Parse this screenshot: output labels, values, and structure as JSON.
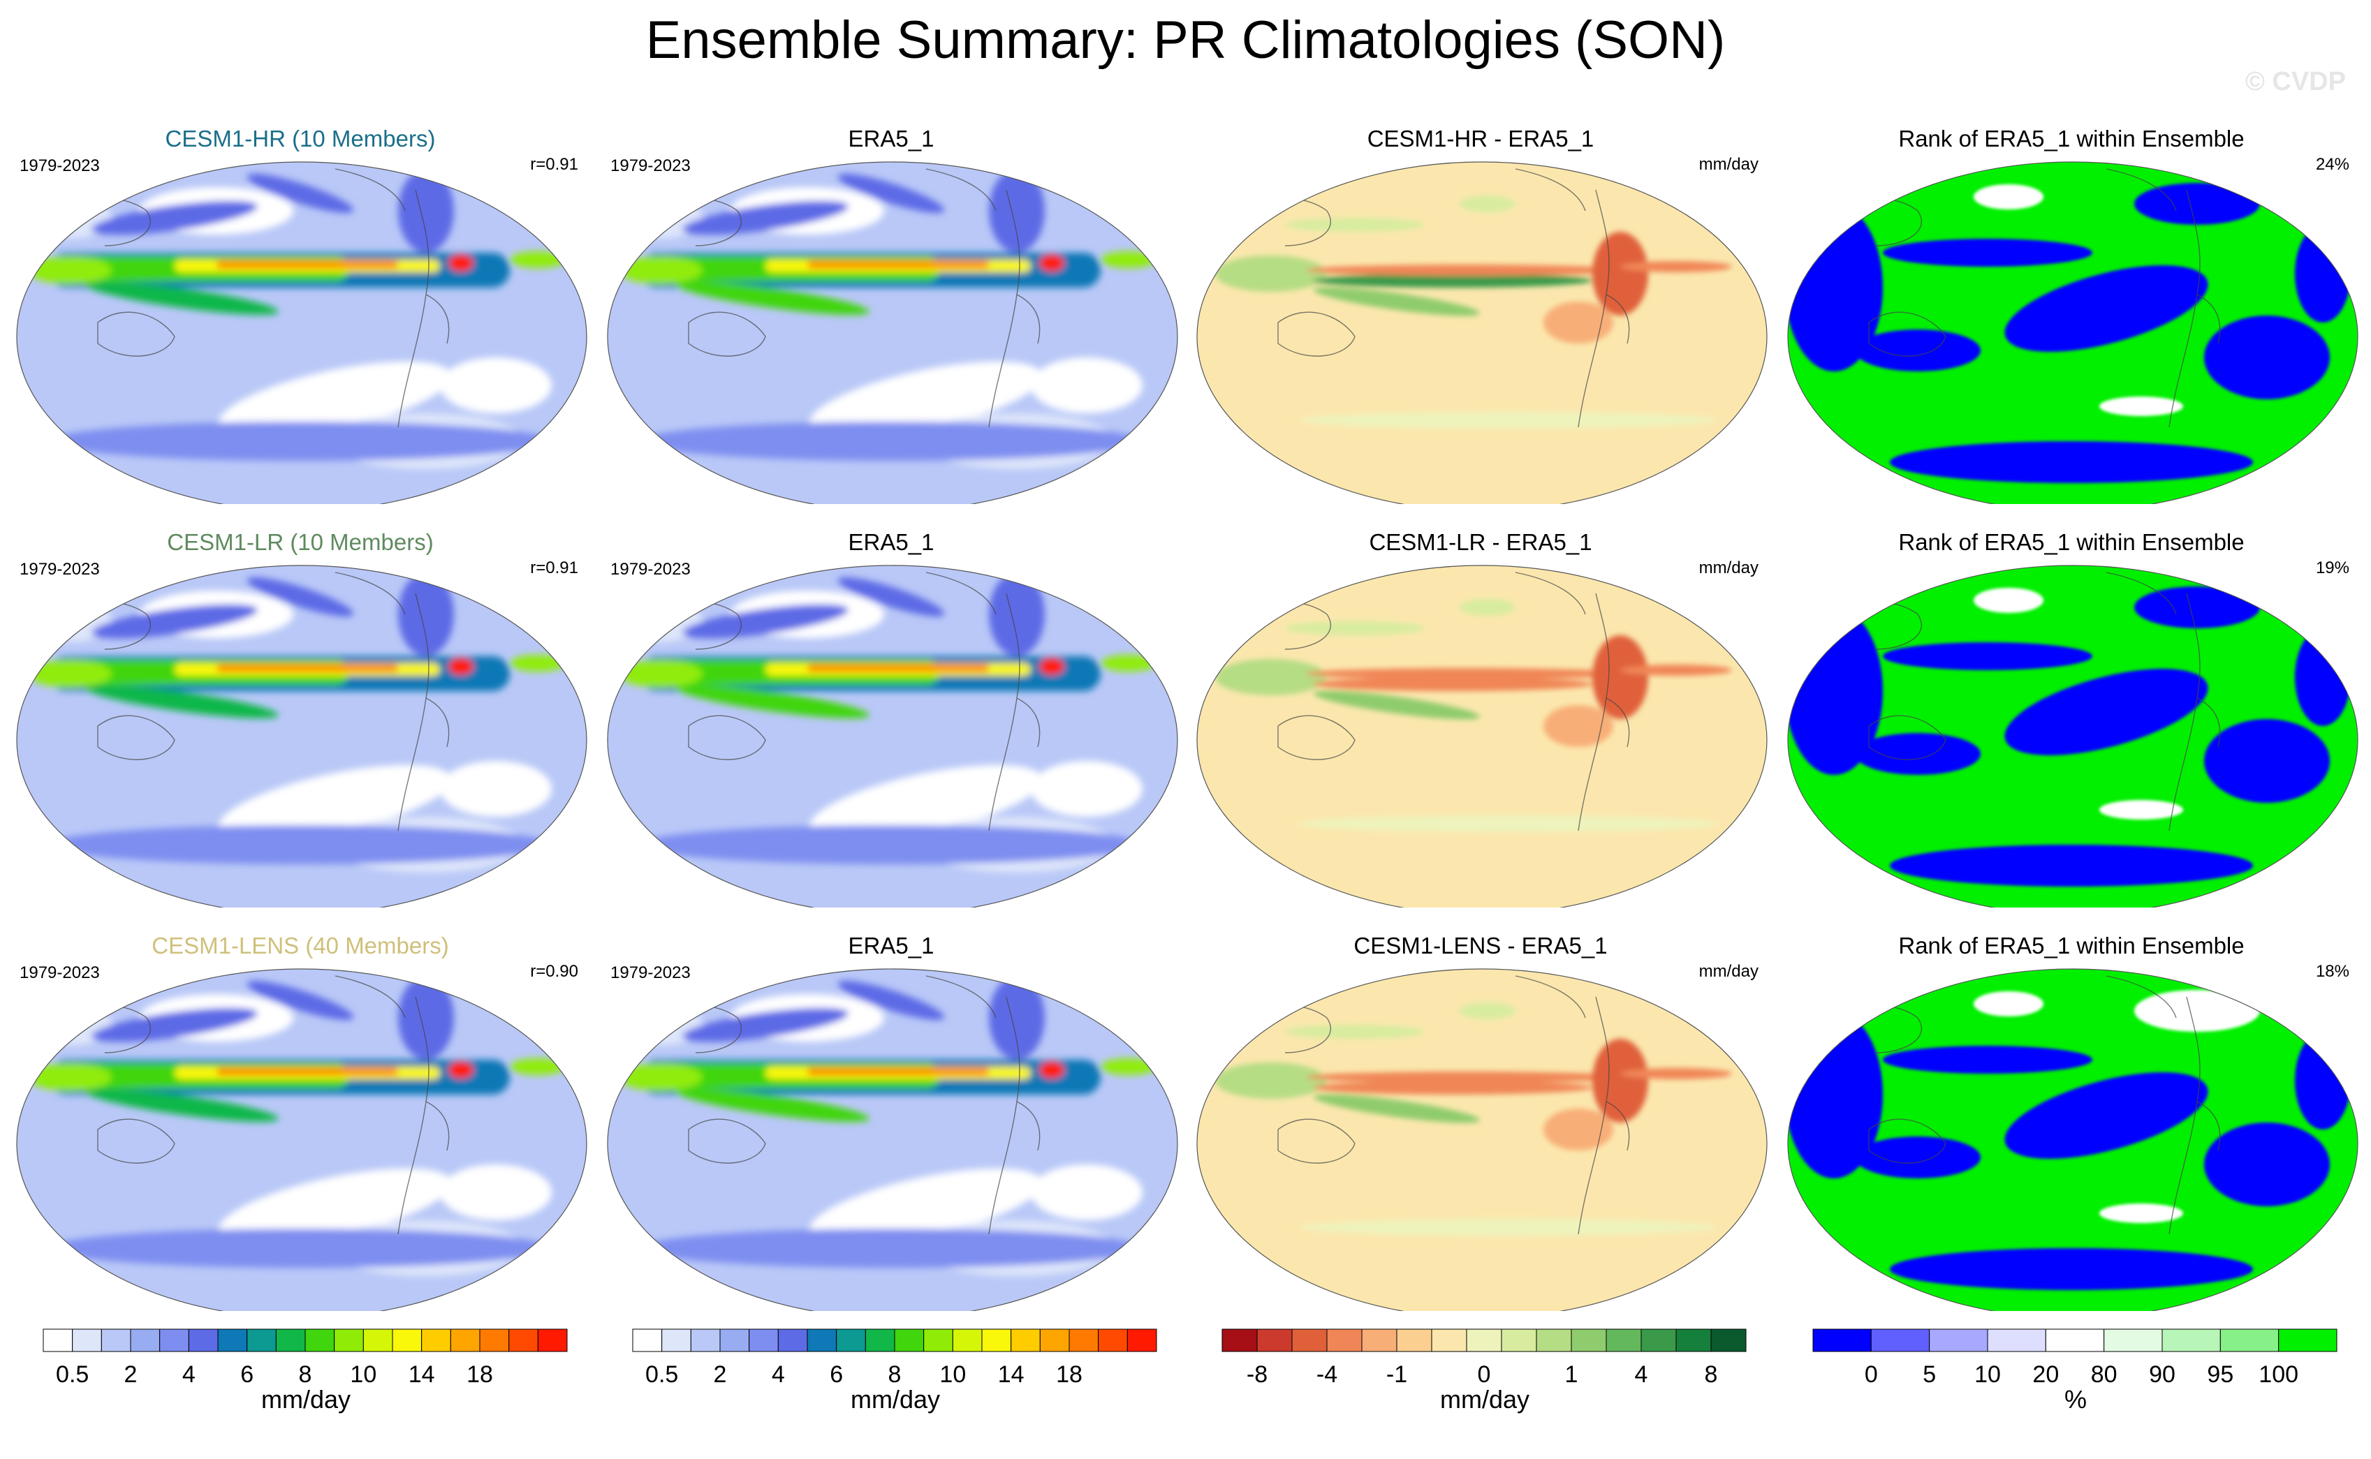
{
  "title": "Ensemble Summary: PR Climatologies (SON)",
  "watermark": "© CVDP",
  "rows": [
    {
      "model": {
        "title": "CESM1-HR (10 Members)",
        "title_color": "#1a6f8a",
        "period": "1979-2023",
        "stat": "r=0.91"
      },
      "obs": {
        "title": "ERA5_1",
        "period": "1979-2023"
      },
      "diff": {
        "title": "CESM1-HR - ERA5_1",
        "units": "mm/day"
      },
      "rank": {
        "title": "Rank of ERA5_1 within Ensemble",
        "stat": "24%"
      }
    },
    {
      "model": {
        "title": "CESM1-LR (10 Members)",
        "title_color": "#5f8a5f",
        "period": "1979-2023",
        "stat": "r=0.91"
      },
      "obs": {
        "title": "ERA5_1",
        "period": "1979-2023"
      },
      "diff": {
        "title": "CESM1-LR - ERA5_1",
        "units": "mm/day"
      },
      "rank": {
        "title": "Rank of ERA5_1 within Ensemble",
        "stat": "19%"
      }
    },
    {
      "model": {
        "title": "CESM1-LENS (40 Members)",
        "title_color": "#cfc07a",
        "period": "1979-2023",
        "stat": "r=0.90"
      },
      "obs": {
        "title": "ERA5_1",
        "period": "1979-2023"
      },
      "diff": {
        "title": "CESM1-LENS - ERA5_1",
        "units": "mm/day"
      },
      "rank": {
        "title": "Rank of ERA5_1 within Ensemble",
        "stat": "18%"
      }
    }
  ],
  "chart_data": {
    "type": "heatmap",
    "projection": "robinson, pacific-centered global maps",
    "layout": "3 rows x 4 columns",
    "columns": [
      "model ensemble mean PR climatology",
      "observed PR climatology",
      "model minus observation difference",
      "percentile rank of observation within ensemble"
    ],
    "colorbars": [
      {
        "name": "pr-climatology",
        "units": "mm/day",
        "tick_labels": [
          "0.5",
          "2",
          "4",
          "6",
          "8",
          "10",
          "14",
          "18"
        ],
        "colors": [
          "#ffffff",
          "#dee6fa",
          "#b9c8f7",
          "#98acf2",
          "#7e8ef0",
          "#5d6be6",
          "#0f78b6",
          "#0d9a93",
          "#11b748",
          "#40d50c",
          "#90ec07",
          "#d6f607",
          "#f9f70a",
          "#ffcc00",
          "#ffa500",
          "#ff7a00",
          "#ff4a00",
          "#ff1a00"
        ]
      },
      {
        "name": "pr-climatology-obs",
        "units": "mm/day",
        "tick_labels": [
          "0.5",
          "2",
          "4",
          "6",
          "8",
          "10",
          "14",
          "18"
        ],
        "colors": [
          "#ffffff",
          "#dee6fa",
          "#b9c8f7",
          "#98acf2",
          "#7e8ef0",
          "#5d6be6",
          "#0f78b6",
          "#0d9a93",
          "#11b748",
          "#40d50c",
          "#90ec07",
          "#d6f607",
          "#f9f70a",
          "#ffcc00",
          "#ffa500",
          "#ff7a00",
          "#ff4a00",
          "#ff1a00"
        ]
      },
      {
        "name": "pr-difference",
        "units": "mm/day",
        "tick_labels": [
          "-8",
          "-4",
          "-1",
          "0",
          "1",
          "4",
          "8"
        ],
        "colors": [
          "#a50f15",
          "#cb3a2c",
          "#e0603a",
          "#f08657",
          "#f8ae77",
          "#fbcf8f",
          "#fbe7ad",
          "#eef3bc",
          "#d8ec9f",
          "#b5dd84",
          "#8fcc6d",
          "#63b85c",
          "#3a9a49",
          "#157f3c",
          "#0a5a2d"
        ]
      },
      {
        "name": "rank",
        "units": "%",
        "tick_labels": [
          "0",
          "5",
          "10",
          "20",
          "80",
          "90",
          "95",
          "100"
        ],
        "colors": [
          "#0000ff",
          "#6060ff",
          "#a8a8ff",
          "#dedeff",
          "#ffffff",
          "#e3fbe3",
          "#b8f5b8",
          "#88f088",
          "#00f000"
        ]
      }
    ]
  }
}
